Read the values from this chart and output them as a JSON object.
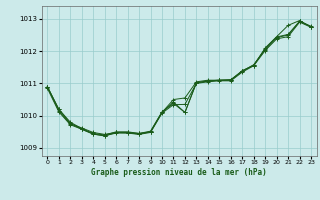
{
  "title": "Graphe pression niveau de la mer (hPa)",
  "background_color": "#cceaea",
  "grid_color": "#99cccc",
  "line_color": "#1a5c1a",
  "xlim": [
    -0.5,
    23.5
  ],
  "ylim": [
    1008.75,
    1013.4
  ],
  "yticks": [
    1009,
    1010,
    1011,
    1012,
    1013
  ],
  "xticks": [
    0,
    1,
    2,
    3,
    4,
    5,
    6,
    7,
    8,
    9,
    10,
    11,
    12,
    13,
    14,
    15,
    16,
    17,
    18,
    19,
    20,
    21,
    22,
    23
  ],
  "series": [
    [
      1010.9,
      1010.2,
      1009.8,
      1009.6,
      1009.45,
      1009.4,
      1009.5,
      1009.5,
      1009.45,
      1009.5,
      1010.1,
      1010.5,
      1010.55,
      1011.05,
      1011.1,
      1011.1,
      1011.1,
      1011.4,
      1011.55,
      1012.1,
      1012.45,
      1012.8,
      1012.95,
      1012.75
    ],
    [
      1010.9,
      1010.15,
      1009.75,
      1009.62,
      1009.48,
      1009.42,
      1009.48,
      1009.48,
      1009.45,
      1009.52,
      1010.12,
      1010.38,
      1010.1,
      1011.02,
      1011.07,
      1011.1,
      1011.12,
      1011.38,
      1011.58,
      1012.05,
      1012.42,
      1012.5,
      1012.92,
      1012.77
    ],
    [
      1010.85,
      1010.12,
      1009.72,
      1009.58,
      1009.43,
      1009.38,
      1009.46,
      1009.46,
      1009.42,
      1009.48,
      1010.08,
      1010.34,
      1010.35,
      1011.0,
      1011.05,
      1011.08,
      1011.08,
      1011.35,
      1011.55,
      1012.02,
      1012.38,
      1012.45,
      1012.9,
      1012.74
    ],
    [
      1010.9,
      1010.2,
      1009.76,
      1009.58,
      1009.43,
      1009.37,
      1009.48,
      1009.47,
      1009.43,
      1009.5,
      1010.1,
      1010.42,
      1010.1,
      1011.02,
      1011.08,
      1011.1,
      1011.1,
      1011.38,
      1011.57,
      1012.08,
      1012.44,
      1012.52,
      1012.93,
      1012.76
    ]
  ]
}
